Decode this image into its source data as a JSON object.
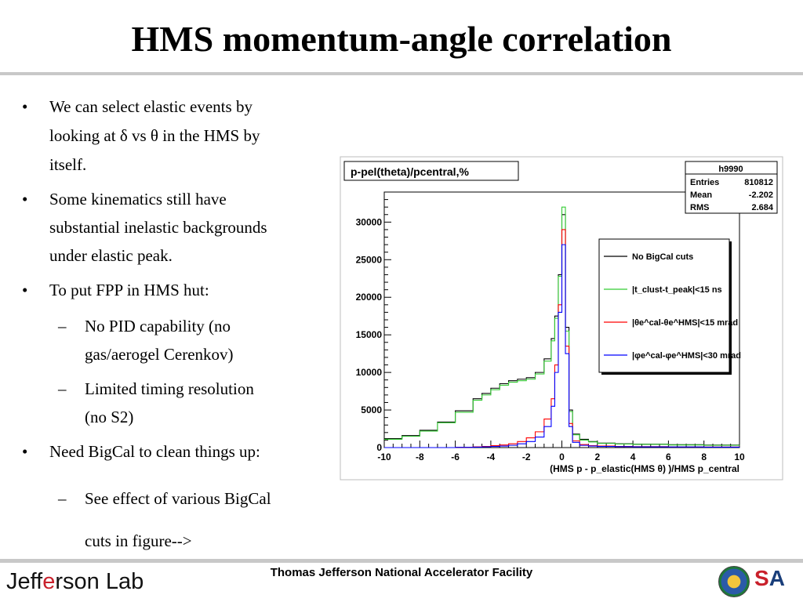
{
  "slide": {
    "title": "HMS momentum-angle correlation",
    "bullets": [
      {
        "mark": "•",
        "line1": "We can select elastic events by",
        "line2": "looking at δ vs  θ in the HMS by",
        "line3": "itself."
      },
      {
        "mark": "•",
        "line1": "Some kinematics still have",
        "line2": "substantial inelastic backgrounds",
        "line3": "under elastic peak."
      },
      {
        "mark": "•",
        "line1": "To put FPP in HMS hut:"
      },
      {
        "mark": "–",
        "line1": "No PID capability (no",
        "line2": "gas/aerogel Cerenkov)"
      },
      {
        "mark": "–",
        "line1": "Limited timing resolution",
        "line2": "(no S2)"
      },
      {
        "mark": "•",
        "line1": "Need BigCal to clean things up:"
      },
      {
        "mark": "–",
        "line1": "See effect of various BigCal",
        "line2": "cuts in figure-->"
      }
    ],
    "footer": {
      "logo_pre": "Jeff",
      "logo_arc": "e",
      "logo_post": "rson Lab",
      "center": "Thomas Jefferson National Accelerator Facility",
      "jsa_pre": "",
      "jsa_s": "S",
      "jsa_post": "A"
    }
  },
  "chart_data": {
    "type": "line",
    "title": "p-pel(theta)/pcentral,%",
    "stats_box": {
      "name": "h9990",
      "rows": [
        {
          "label": "Entries",
          "value": "810812"
        },
        {
          "label": "Mean",
          "value": "-2.202"
        },
        {
          "label": "RMS",
          "value": "2.684"
        }
      ]
    },
    "xlabel": "(HMS p - p_elastic(HMS θ) )/HMS p_central",
    "xlim": [
      -10,
      10
    ],
    "ylim": [
      0,
      34000
    ],
    "xticks": [
      "-10",
      "-8",
      "-6",
      "-4",
      "-2",
      "0",
      "2",
      "4",
      "6",
      "8",
      "10"
    ],
    "yticks": [
      "0",
      "5000",
      "10000",
      "15000",
      "20000",
      "25000",
      "30000"
    ],
    "legend": [
      {
        "label": "No BigCal cuts",
        "color": "#000000"
      },
      {
        "label": "|t_clust-t_peak|<15 ns",
        "color": "#33cc33"
      },
      {
        "label": "|θe^cal-θe^HMS|<15 mrad",
        "color": "#ff0000"
      },
      {
        "label": "|φe^cal-φe^HMS|<30 mrad",
        "color": "#0000ff"
      }
    ],
    "legend_placement": "right",
    "x": [
      -10,
      -9,
      -8,
      -7,
      -6,
      -5,
      -4.5,
      -4,
      -3.5,
      -3,
      -2.5,
      -2,
      -1.5,
      -1,
      -0.6,
      -0.4,
      -0.2,
      0,
      0.2,
      0.4,
      0.6,
      1,
      1.5,
      2,
      3,
      4,
      6,
      8,
      10
    ],
    "series": [
      {
        "name": "No BigCal cuts",
        "color": "#000000",
        "values": [
          1200,
          1600,
          2300,
          3400,
          4900,
          6500,
          7200,
          7900,
          8500,
          8900,
          9100,
          9300,
          10000,
          11800,
          14500,
          17500,
          23000,
          31000,
          16000,
          5000,
          1800,
          1100,
          800,
          600,
          500,
          450,
          380,
          330,
          300
        ]
      },
      {
        "name": "|t_clust-t_peak|<15 ns",
        "color": "#33cc33",
        "values": [
          1100,
          1500,
          2200,
          3300,
          4700,
          6300,
          7000,
          7700,
          8300,
          8700,
          8900,
          9100,
          9800,
          11500,
          14200,
          17200,
          22800,
          32000,
          15500,
          4800,
          1700,
          1000,
          750,
          560,
          470,
          420,
          350,
          300,
          270
        ]
      },
      {
        "name": "|θe^cal-θe^HMS|<15 mrad",
        "color": "#ff0000",
        "values": [
          0,
          0,
          0,
          0,
          50,
          100,
          150,
          250,
          350,
          500,
          800,
          1300,
          2100,
          3800,
          6500,
          11000,
          19000,
          29000,
          13500,
          3200,
          900,
          400,
          250,
          200,
          150,
          120,
          90,
          70,
          50
        ]
      },
      {
        "name": "|φe^cal-φe^HMS|<30 mrad",
        "color": "#0000ff",
        "values": [
          0,
          0,
          0,
          0,
          30,
          60,
          100,
          150,
          200,
          300,
          500,
          800,
          1400,
          2800,
          5500,
          10000,
          18000,
          27000,
          12500,
          2800,
          700,
          300,
          200,
          150,
          120,
          100,
          80,
          60,
          40
        ]
      }
    ]
  }
}
